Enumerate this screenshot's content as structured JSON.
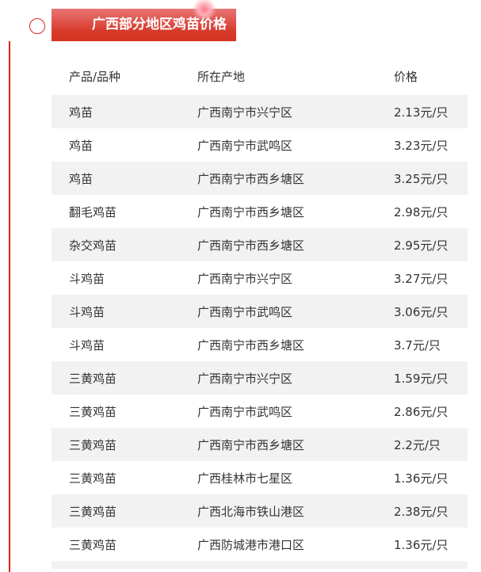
{
  "title": "广西部分地区鸡苗价格",
  "headers": [
    "产品/品种",
    "所在产地",
    "价格"
  ],
  "rows": [
    [
      "鸡苗",
      "广西南宁市兴宁区",
      "2.13元/只"
    ],
    [
      "鸡苗",
      "广西南宁市武鸣区",
      "3.23元/只"
    ],
    [
      "鸡苗",
      "广西南宁市西乡塘区",
      "3.25元/只"
    ],
    [
      "翻毛鸡苗",
      "广西南宁市西乡塘区",
      "2.98元/只"
    ],
    [
      "杂交鸡苗",
      "广西南宁市西乡塘区",
      "2.95元/只"
    ],
    [
      "斗鸡苗",
      "广西南宁市兴宁区",
      "3.27元/只"
    ],
    [
      "斗鸡苗",
      "广西南宁市武鸣区",
      "3.06元/只"
    ],
    [
      "斗鸡苗",
      "广西南宁市西乡塘区",
      "3.7元/只"
    ],
    [
      "三黄鸡苗",
      "广西南宁市兴宁区",
      "1.59元/只"
    ],
    [
      "三黄鸡苗",
      "广西南宁市武鸣区",
      "2.86元/只"
    ],
    [
      "三黄鸡苗",
      "广西南宁市西乡塘区",
      "2.2元/只"
    ],
    [
      "三黄鸡苗",
      "广西桂林市七星区",
      "1.36元/只"
    ],
    [
      "三黄鸡苗",
      "广西北海市铁山港区",
      "2.38元/只"
    ],
    [
      "三黄鸡苗",
      "广西防城港市港口区",
      "1.36元/只"
    ]
  ],
  "colors": {
    "accent": "#d9261c",
    "stripe": "#f2f2f2"
  }
}
